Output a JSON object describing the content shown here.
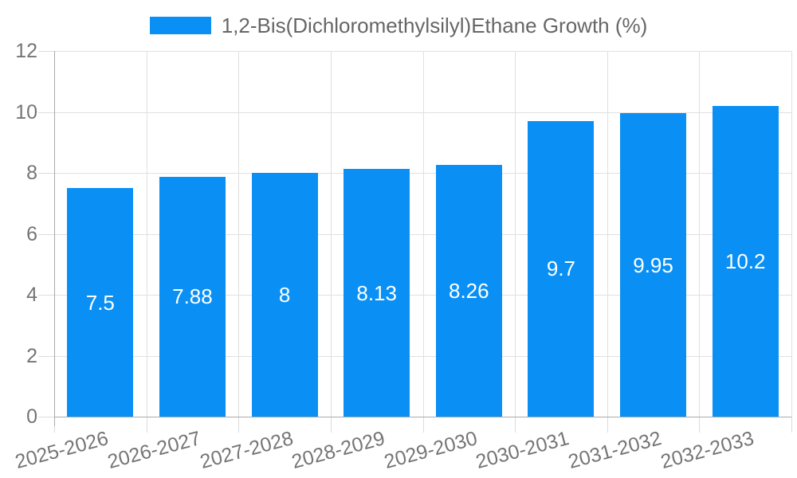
{
  "page": {
    "background": "#ffffff"
  },
  "chart_data": {
    "type": "bar",
    "title": "1,2-Bis(Dichloromethylsilyl)Ethane Growth (%)",
    "legend_entries": [
      "1,2-Bis(Dichloromethylsilyl)Ethane Growth (%)"
    ],
    "categories": [
      "2025-2026",
      "2026-2027",
      "2027-2028",
      "2028-2029",
      "2029-2030",
      "2030-2031",
      "2031-2032",
      "2032-2033"
    ],
    "values": [
      7.5,
      7.88,
      8,
      8.13,
      8.26,
      9.7,
      9.95,
      10.2
    ],
    "value_labels": [
      "7.5",
      "7.88",
      "8",
      "8.13",
      "8.26",
      "9.7",
      "9.95",
      "10.2"
    ],
    "xlabel": "",
    "ylabel": "",
    "ylim": [
      0,
      12
    ],
    "yticks": [
      0,
      2,
      4,
      6,
      8,
      10,
      12
    ],
    "ytick_labels": [
      "0",
      "2",
      "4",
      "6",
      "8",
      "10",
      "12"
    ],
    "grid": true,
    "legend_position": "top-center",
    "x_label_rotation_deg": -15,
    "colors": {
      "bar": "#0a90f5",
      "bar_label": "#ffffff",
      "gridline": "#e0e0e0",
      "tick": "#dcdcdc",
      "axis_line": "#aaaaaa",
      "axis_text": "#757575",
      "legend_text": "#666666"
    }
  }
}
